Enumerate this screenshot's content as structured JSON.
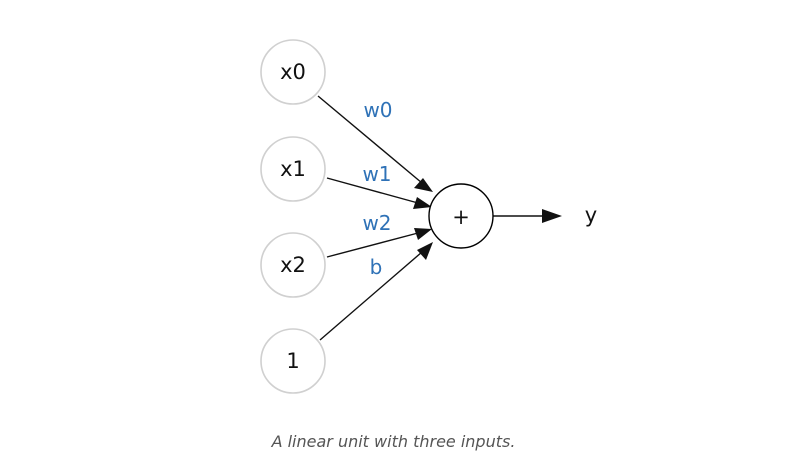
{
  "nodes": {
    "x0": "x0",
    "x1": "x1",
    "x2": "x2",
    "bias_input": "1",
    "sum": "+",
    "output": "y"
  },
  "weights": {
    "w0": "w0",
    "w1": "w1",
    "w2": "w2",
    "b": "b"
  },
  "caption": "A linear unit with three inputs."
}
